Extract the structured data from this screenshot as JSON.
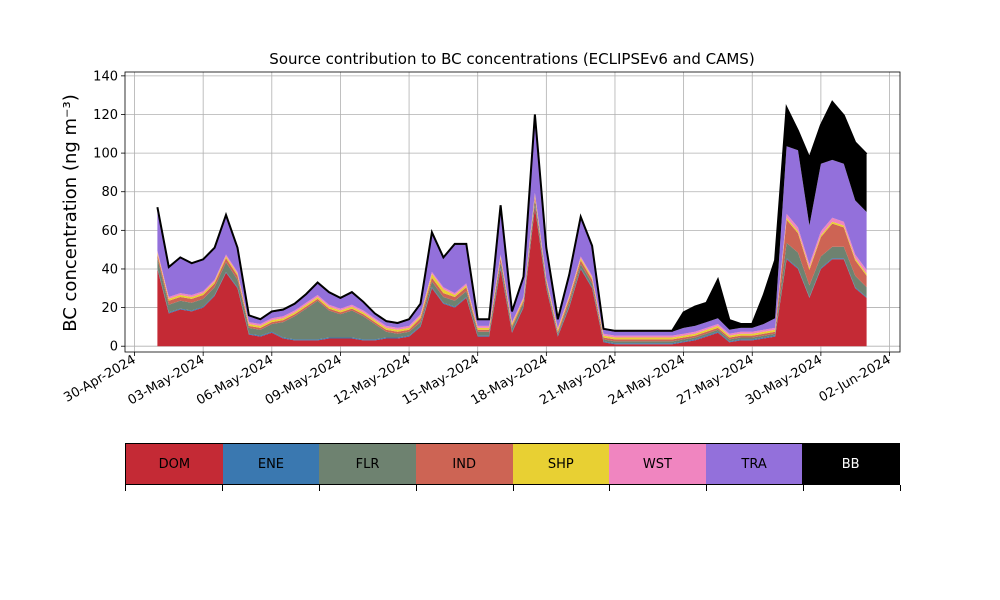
{
  "chart_data": {
    "type": "area",
    "title": "Source contribution to BC concentrations (ECLIPSEv6 and CAMS)",
    "ylabel": "BC concentration (ng m⁻³)",
    "xlabel": "",
    "ylim": [
      -3,
      142
    ],
    "yticks": [
      "0",
      "20",
      "40",
      "60",
      "80",
      "100",
      "120",
      "140"
    ],
    "xlim": [
      "2024-04-29T14:00",
      "2024-06-02T11:00"
    ],
    "xticks": [
      "30-Apr-2024",
      "03-May-2024",
      "06-May-2024",
      "09-May-2024",
      "12-May-2024",
      "15-May-2024",
      "18-May-2024",
      "21-May-2024",
      "24-May-2024",
      "27-May-2024",
      "30-May-2024",
      "02-Jun-2024"
    ],
    "grid": true,
    "stacked": true,
    "x": [
      "2024-05-01",
      "2024-05-01T12:00",
      "2024-05-02",
      "2024-05-02T12:00",
      "2024-05-03",
      "2024-05-03T12:00",
      "2024-05-04",
      "2024-05-04T12:00",
      "2024-05-05",
      "2024-05-05T12:00",
      "2024-05-06",
      "2024-05-06T12:00",
      "2024-05-07",
      "2024-05-07T12:00",
      "2024-05-08",
      "2024-05-08T12:00",
      "2024-05-09",
      "2024-05-09T12:00",
      "2024-05-10",
      "2024-05-10T12:00",
      "2024-05-11",
      "2024-05-11T12:00",
      "2024-05-12",
      "2024-05-12T12:00",
      "2024-05-13",
      "2024-05-13T12:00",
      "2024-05-14",
      "2024-05-14T12:00",
      "2024-05-15",
      "2024-05-15T12:00",
      "2024-05-16",
      "2024-05-16T12:00",
      "2024-05-17",
      "2024-05-17T12:00",
      "2024-05-18",
      "2024-05-18T12:00",
      "2024-05-19",
      "2024-05-19T12:00",
      "2024-05-20",
      "2024-05-20T12:00",
      "2024-05-21",
      "2024-05-21T12:00",
      "2024-05-22",
      "2024-05-22T12:00",
      "2024-05-23",
      "2024-05-23T12:00",
      "2024-05-24",
      "2024-05-24T12:00",
      "2024-05-25",
      "2024-05-25T12:00",
      "2024-05-26",
      "2024-05-26T12:00",
      "2024-05-27",
      "2024-05-27T12:00",
      "2024-05-28",
      "2024-05-28T12:00",
      "2024-05-29",
      "2024-05-29T12:00",
      "2024-05-30",
      "2024-05-30T12:00",
      "2024-05-31",
      "2024-05-31T12:00",
      "2024-06-01"
    ],
    "series": [
      {
        "name": "DOM",
        "color": "#c42a35",
        "values": [
          40,
          17,
          19,
          18,
          20,
          26,
          38,
          30,
          6,
          5,
          7,
          4,
          3,
          3,
          3,
          4,
          4,
          4,
          3,
          3,
          4,
          4,
          5,
          10,
          30,
          22,
          20,
          25,
          5,
          5,
          40,
          7,
          20,
          72,
          30,
          5,
          20,
          40,
          30,
          2,
          1,
          1,
          1,
          1,
          1,
          1,
          2,
          3,
          5,
          7,
          2,
          3,
          3,
          4,
          5,
          45,
          40,
          25,
          40,
          45,
          45,
          30,
          25
        ]
      },
      {
        "name": "ENE",
        "color": "#3a78b0",
        "values": [
          0.5,
          0.5,
          0.5,
          0.5,
          0.5,
          0.5,
          0.5,
          0.5,
          0.5,
          0.5,
          0.5,
          0.5,
          0.5,
          0.5,
          0.5,
          0.5,
          0.5,
          0.5,
          0.5,
          0.5,
          0.5,
          0.5,
          0.5,
          0.5,
          0.5,
          0.5,
          0.5,
          0.5,
          0.5,
          0.5,
          0.5,
          0.5,
          0.5,
          0.5,
          0.5,
          0.5,
          0.5,
          0.5,
          0.5,
          0.5,
          0.5,
          0.5,
          0.5,
          0.5,
          0.5,
          0.5,
          0.5,
          0.5,
          0.5,
          0.5,
          0.5,
          0.5,
          0.5,
          0.5,
          0.5,
          0.5,
          0.5,
          0.5,
          0.5,
          0.5,
          0.5,
          0.5,
          0.5
        ]
      },
      {
        "name": "FLR",
        "color": "#6e8270",
        "values": [
          5,
          4,
          4,
          4,
          4,
          4,
          5,
          4,
          3,
          3,
          4,
          8,
          12,
          16,
          20,
          14,
          12,
          14,
          12,
          8,
          3,
          2,
          2,
          2,
          3,
          3,
          3,
          3,
          2,
          2,
          3,
          2,
          2,
          3,
          2,
          1,
          2,
          2,
          2,
          1,
          1,
          1,
          1,
          1,
          1,
          1,
          1,
          1,
          1,
          1,
          1,
          1,
          1,
          1,
          1,
          8,
          8,
          6,
          6,
          6,
          6,
          6,
          5
        ]
      },
      {
        "name": "IND",
        "color": "#cd6454",
        "values": [
          2,
          2,
          2,
          2,
          2,
          2,
          2,
          2,
          1,
          1,
          1,
          1,
          1,
          1,
          1,
          1,
          1,
          1,
          1,
          1,
          1,
          1,
          1,
          2,
          2,
          2,
          2,
          2,
          1,
          1,
          2,
          1,
          1,
          2,
          1,
          1,
          2,
          2,
          2,
          1,
          1,
          1,
          1,
          1,
          1,
          1,
          1,
          1,
          1,
          1,
          1,
          1,
          1,
          1,
          1,
          12,
          10,
          8,
          10,
          12,
          10,
          8,
          6
        ]
      },
      {
        "name": "SHP",
        "color": "#e8d033",
        "values": [
          1,
          1,
          1,
          1,
          1,
          1,
          1,
          1,
          1,
          1,
          1,
          1,
          1,
          1,
          1,
          1,
          1,
          1,
          1,
          1,
          1,
          1,
          1,
          1,
          2,
          2,
          1,
          1,
          1,
          1,
          1,
          1,
          1,
          1,
          1,
          1,
          1,
          1,
          1,
          1,
          1,
          1,
          1,
          1,
          1,
          1,
          1,
          1,
          1,
          1,
          1,
          1,
          1,
          1,
          1,
          1,
          1,
          1,
          1,
          1,
          1,
          1,
          1
        ]
      },
      {
        "name": "WST",
        "color": "#f085c0",
        "values": [
          1,
          1,
          1,
          1,
          1,
          1,
          1,
          1,
          1,
          1,
          1,
          1,
          1,
          1,
          1,
          1,
          1,
          1,
          1,
          1,
          1,
          1,
          1,
          1,
          1,
          1,
          1,
          1,
          1,
          1,
          1,
          1,
          1,
          1,
          1,
          1,
          1,
          1,
          1,
          1,
          1,
          1,
          1,
          1,
          1,
          1,
          1,
          1,
          1,
          1,
          1,
          1,
          1,
          1,
          1,
          2,
          2,
          2,
          2,
          2,
          2,
          2,
          2
        ]
      },
      {
        "name": "TRA",
        "color": "#9370db",
        "values": [
          22,
          15,
          18,
          16,
          16,
          16,
          20,
          12,
          3,
          2,
          3,
          3,
          3,
          4,
          6,
          6,
          5,
          6,
          4,
          2,
          2,
          2,
          3,
          5,
          20,
          15,
          25,
          20,
          3,
          3,
          25,
          5,
          10,
          40,
          15,
          4,
          10,
          20,
          15,
          2,
          2,
          2,
          2,
          2,
          2,
          2,
          3,
          3,
          3,
          3,
          2,
          2,
          2,
          3,
          5,
          35,
          40,
          20,
          35,
          30,
          30,
          28,
          30
        ]
      },
      {
        "name": "BB",
        "color": "#000000",
        "values": [
          0.5,
          0.5,
          0.5,
          0.5,
          0.5,
          0.5,
          0.5,
          0.5,
          0.5,
          0.5,
          0.5,
          0.5,
          0.5,
          0.5,
          0.5,
          0.5,
          0.5,
          0.5,
          0.5,
          0.5,
          0.5,
          0.5,
          0.5,
          0.5,
          0.5,
          0.5,
          0.5,
          0.5,
          0.5,
          0.5,
          0.5,
          0.5,
          0.5,
          0.5,
          0.5,
          0.5,
          0.5,
          0.5,
          0.5,
          0.5,
          0.5,
          0.5,
          0.5,
          0.5,
          0.5,
          0.5,
          8,
          10,
          10,
          20,
          5,
          2,
          2,
          15,
          30,
          20,
          10,
          35,
          20,
          30,
          25,
          30,
          30
        ]
      }
    ]
  },
  "legend": {
    "items": [
      {
        "label": "DOM",
        "color": "#c42a35",
        "text_color": "#000000"
      },
      {
        "label": "ENE",
        "color": "#3a78b0",
        "text_color": "#000000"
      },
      {
        "label": "FLR",
        "color": "#6e8270",
        "text_color": "#000000"
      },
      {
        "label": "IND",
        "color": "#cd6454",
        "text_color": "#000000"
      },
      {
        "label": "SHP",
        "color": "#e8d033",
        "text_color": "#000000"
      },
      {
        "label": "WST",
        "color": "#f085c0",
        "text_color": "#000000"
      },
      {
        "label": "TRA",
        "color": "#9370db",
        "text_color": "#000000"
      },
      {
        "label": "BB",
        "color": "#000000",
        "text_color": "#ffffff"
      }
    ]
  }
}
